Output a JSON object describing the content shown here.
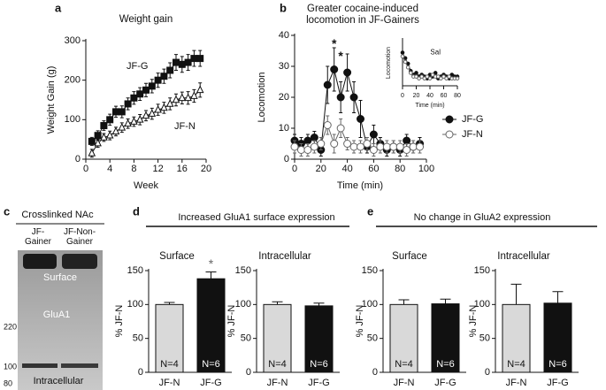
{
  "panel_labels": [
    "a",
    "b",
    "c"
  ],
  "groups": [
    {
      "label": "d",
      "title": "Increased GluA1 surface expression"
    },
    {
      "label": "e",
      "title": "No change in GluA2 expression"
    }
  ],
  "blot": {
    "title": "Crosslinked NAc",
    "lanes": [
      "JF-Gainer",
      "JF-Non-Gainer"
    ],
    "bands": [
      "Surface",
      "GluA1",
      "Intracellular"
    ],
    "markers": [
      220,
      100,
      80
    ]
  },
  "chart_data": [
    {
      "type": "line",
      "title": "Weight gain",
      "xlabel": "Week",
      "ylabel": "Weight Gain (g)",
      "xlim": [
        0,
        20
      ],
      "xticks": [
        0,
        4,
        8,
        12,
        16,
        20
      ],
      "ylim": [
        0,
        300
      ],
      "yticks": [
        0,
        100,
        200,
        300
      ],
      "legend": "inline",
      "x": [
        1,
        2,
        3,
        4,
        5,
        6,
        7,
        8,
        9,
        10,
        11,
        12,
        13,
        14,
        15,
        16,
        17,
        18,
        19
      ],
      "series": [
        {
          "name": "JF-G",
          "color": "#111111",
          "fill": "#111111",
          "marker": "square",
          "values": [
            45,
            60,
            85,
            100,
            120,
            120,
            140,
            155,
            165,
            175,
            185,
            200,
            210,
            225,
            245,
            240,
            245,
            255,
            255
          ],
          "errors": [
            10,
            12,
            12,
            14,
            14,
            15,
            15,
            16,
            16,
            17,
            17,
            18,
            18,
            19,
            20,
            20,
            20,
            20,
            20
          ]
        },
        {
          "name": "JF-N",
          "color": "#111111",
          "fill": "#ffffff",
          "marker": "triangle",
          "values": [
            15,
            40,
            55,
            60,
            70,
            80,
            90,
            95,
            100,
            110,
            115,
            125,
            130,
            140,
            150,
            155,
            155,
            160,
            175
          ],
          "errors": [
            10,
            10,
            10,
            11,
            11,
            12,
            12,
            12,
            13,
            13,
            14,
            14,
            14,
            15,
            15,
            15,
            16,
            16,
            18
          ]
        }
      ]
    },
    {
      "type": "line",
      "title": "Greater cocaine-induced locomotion in JF-Gainers",
      "xlabel": "Time (min)",
      "ylabel": "Locomotion",
      "xlim": [
        0,
        100
      ],
      "xticks": [
        0,
        20,
        40,
        60,
        80,
        100
      ],
      "ylim": [
        0,
        40
      ],
      "yticks": [
        0,
        10,
        20,
        30,
        40
      ],
      "legend": "right",
      "x": [
        0,
        5,
        10,
        15,
        20,
        25,
        30,
        35,
        40,
        45,
        50,
        55,
        60,
        65,
        70,
        75,
        80,
        85,
        90,
        95
      ],
      "series": [
        {
          "name": "JF-G",
          "color": "#111111",
          "fill": "#111111",
          "marker": "circle",
          "values": [
            6,
            5,
            6,
            7,
            3,
            24,
            29,
            20,
            28,
            20,
            13,
            4,
            8,
            5,
            3,
            4,
            3,
            6,
            4,
            5
          ],
          "errors": [
            2,
            2,
            2,
            2,
            2,
            6,
            7,
            5,
            6,
            5,
            6,
            2,
            3,
            2,
            2,
            2,
            2,
            2,
            2,
            2
          ]
        },
        {
          "name": "JF-N",
          "color": "#666666",
          "fill": "#ffffff",
          "marker": "circle",
          "values": [
            4,
            3,
            3,
            4,
            5,
            11,
            5,
            10,
            5,
            4,
            4,
            5,
            3,
            4,
            4,
            4,
            4,
            3,
            4,
            4
          ],
          "errors": [
            2,
            2,
            2,
            2,
            2,
            3,
            3,
            3,
            2,
            2,
            2,
            2,
            2,
            2,
            2,
            2,
            2,
            2,
            2,
            2
          ]
        }
      ],
      "annotations": [
        {
          "text": "*",
          "x": 30,
          "y": 37
        },
        {
          "text": "*",
          "x": 35,
          "y": 33
        }
      ]
    },
    {
      "type": "line",
      "xlabel": "Time (min)",
      "ylabel": "Locomotion",
      "xlim": [
        0,
        80
      ],
      "xticks": [
        0,
        20,
        40,
        60,
        80
      ],
      "ylim": [
        0,
        25
      ],
      "x": [
        0,
        4,
        8,
        12,
        16,
        20,
        24,
        28,
        32,
        36,
        40,
        44,
        48,
        52,
        56,
        60,
        64,
        68,
        72,
        76,
        80
      ],
      "series": [
        {
          "name": "JF-G",
          "color": "#111111",
          "fill": "#111111",
          "marker": "circle",
          "values": [
            18,
            15,
            12,
            8,
            6,
            7,
            5,
            6,
            5,
            4,
            6,
            5,
            7,
            4,
            5,
            6,
            5,
            4,
            6,
            5,
            5
          ]
        },
        {
          "name": "JF-N",
          "color": "#666666",
          "fill": "#ffffff",
          "marker": "circle",
          "values": [
            16,
            13,
            10,
            7,
            5,
            5,
            4,
            5,
            4,
            5,
            4,
            6,
            5,
            5,
            4,
            5,
            4,
            5,
            4,
            4,
            4
          ]
        }
      ],
      "annotations": [
        {
          "text": "Sal",
          "x": 48,
          "y": 18
        }
      ]
    },
    {
      "type": "bar",
      "title": "Surface",
      "ylabel": "% JF-N",
      "categories": [
        "JF-N",
        "JF-G"
      ],
      "values": [
        100,
        138
      ],
      "errors": [
        3,
        10
      ],
      "colors": [
        "#d9d9d9",
        "#111111"
      ],
      "bar_labels": [
        "N=4",
        "N=6"
      ],
      "ylim": [
        0,
        150
      ],
      "yticks": [
        0,
        50,
        100,
        150
      ],
      "annotations": [
        {
          "text": "*",
          "category": "JF-G"
        }
      ]
    },
    {
      "type": "bar",
      "title": "Intracellular",
      "ylabel": "% JF-N",
      "categories": [
        "JF-N",
        "JF-G"
      ],
      "values": [
        100,
        98
      ],
      "errors": [
        4,
        4
      ],
      "colors": [
        "#d9d9d9",
        "#111111"
      ],
      "bar_labels": [
        "N=4",
        "N=6"
      ],
      "ylim": [
        0,
        150
      ],
      "yticks": [
        0,
        50,
        100,
        150
      ]
    },
    {
      "type": "bar",
      "title": "Surface",
      "ylabel": "% JF-N",
      "categories": [
        "JF-N",
        "JF-G"
      ],
      "values": [
        100,
        101
      ],
      "errors": [
        7,
        7
      ],
      "colors": [
        "#d9d9d9",
        "#111111"
      ],
      "bar_labels": [
        "N=4",
        "N=6"
      ],
      "ylim": [
        0,
        150
      ],
      "yticks": [
        0,
        50,
        100,
        150
      ]
    },
    {
      "type": "bar",
      "title": "Intracellular",
      "ylabel": "% JF-N",
      "categories": [
        "JF-N",
        "JF-G"
      ],
      "values": [
        100,
        102
      ],
      "errors": [
        30,
        17
      ],
      "colors": [
        "#d9d9d9",
        "#111111"
      ],
      "bar_labels": [
        "N=4",
        "N=6"
      ],
      "ylim": [
        0,
        150
      ],
      "yticks": [
        0,
        50,
        100,
        150
      ]
    }
  ]
}
